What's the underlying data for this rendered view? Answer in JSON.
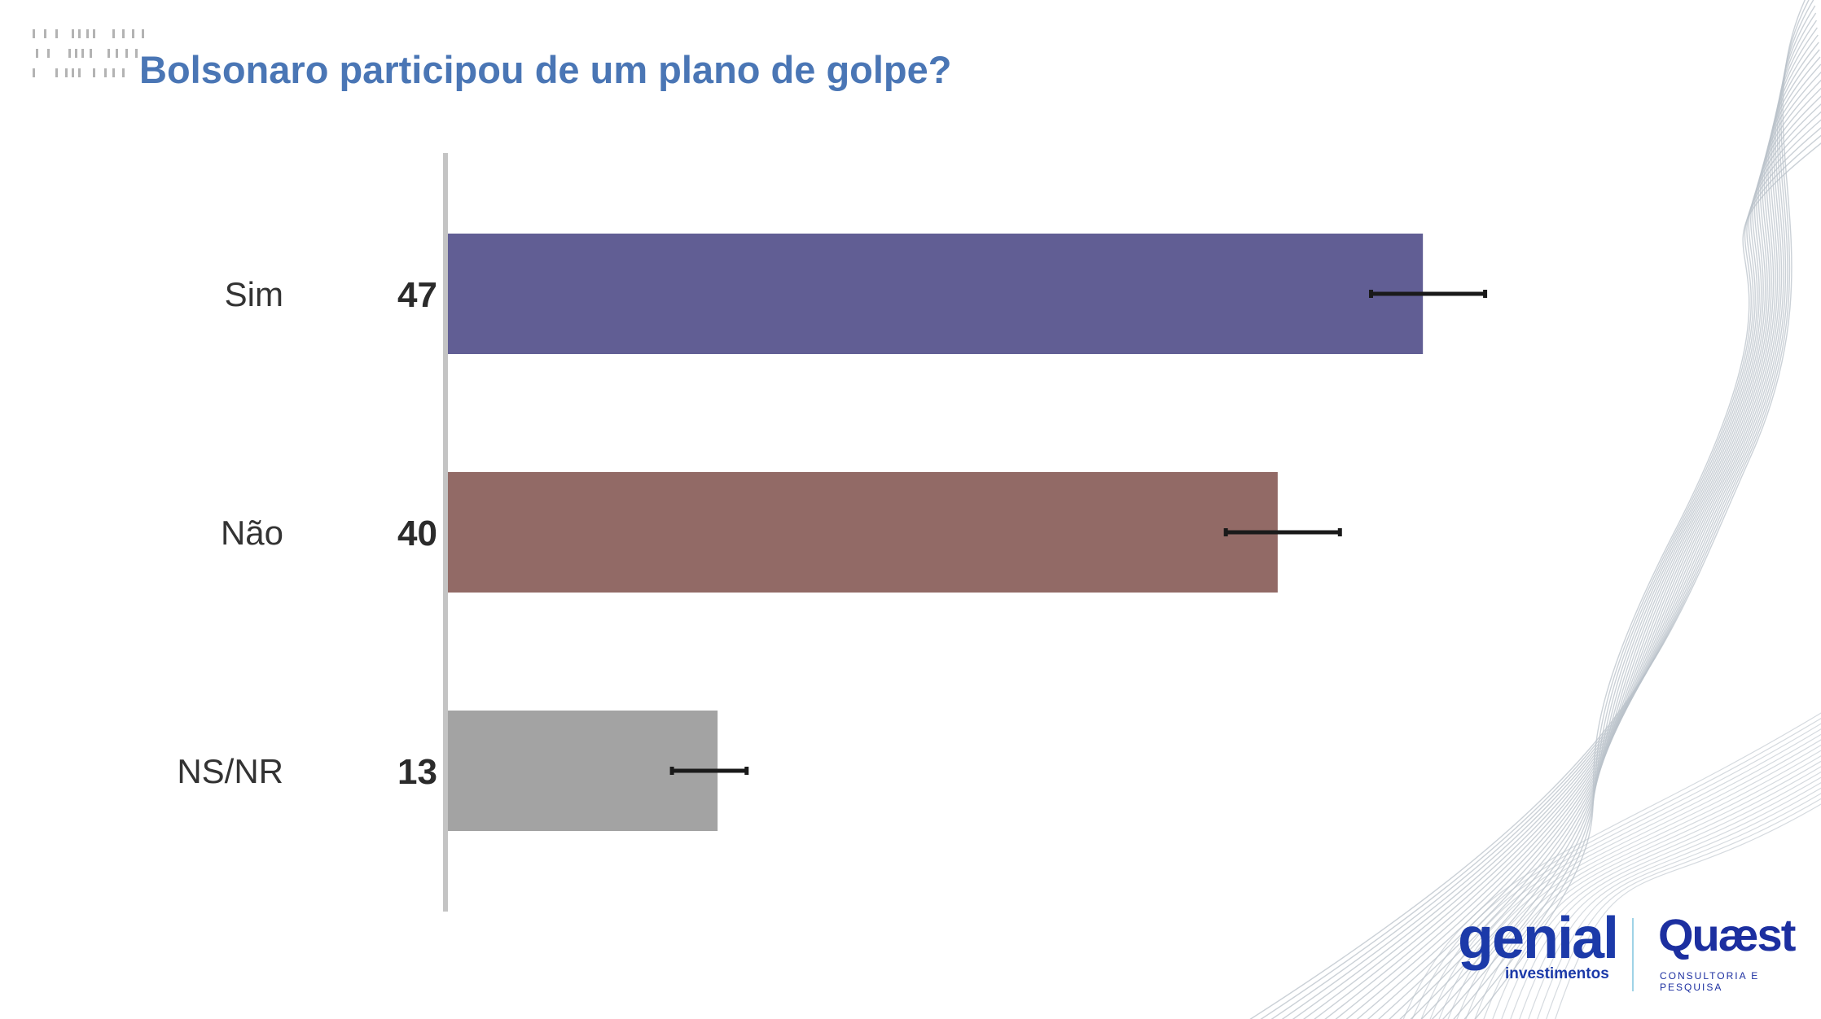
{
  "header": {
    "title": "Bolsonaro participou de um plano de golpe?"
  },
  "chart_data": {
    "type": "bar",
    "orientation": "horizontal",
    "title": "Bolsonaro participou de um plano de golpe?",
    "categories": [
      "Sim",
      "Não",
      "NS/NR"
    ],
    "values": [
      47,
      40,
      13
    ],
    "value_labels": [
      "47",
      "40",
      "13"
    ],
    "error_bars": [
      {
        "low": 44.5,
        "high": 50
      },
      {
        "low": 37.5,
        "high": 43
      },
      {
        "low": 10.8,
        "high": 14.4
      }
    ],
    "colors": [
      "#615e94",
      "#926a66",
      "#a3a3a3"
    ],
    "error_bar_color": "#1a1a1a",
    "axis_color": "#c4c4c4",
    "xlim": [
      0,
      53
    ],
    "xlabel": "",
    "ylabel": "",
    "grid": false,
    "legend": "none"
  },
  "branding": {
    "genial_name": "genial",
    "genial_sub": "investimentos",
    "quaest_name": "Quæst",
    "quaest_sub": "CONSULTORIA E PESQUISA"
  },
  "colors": {
    "title": "#4a76b5",
    "logo_blue": "#1c3aa9",
    "wave_lines": "#b9c2ca"
  }
}
